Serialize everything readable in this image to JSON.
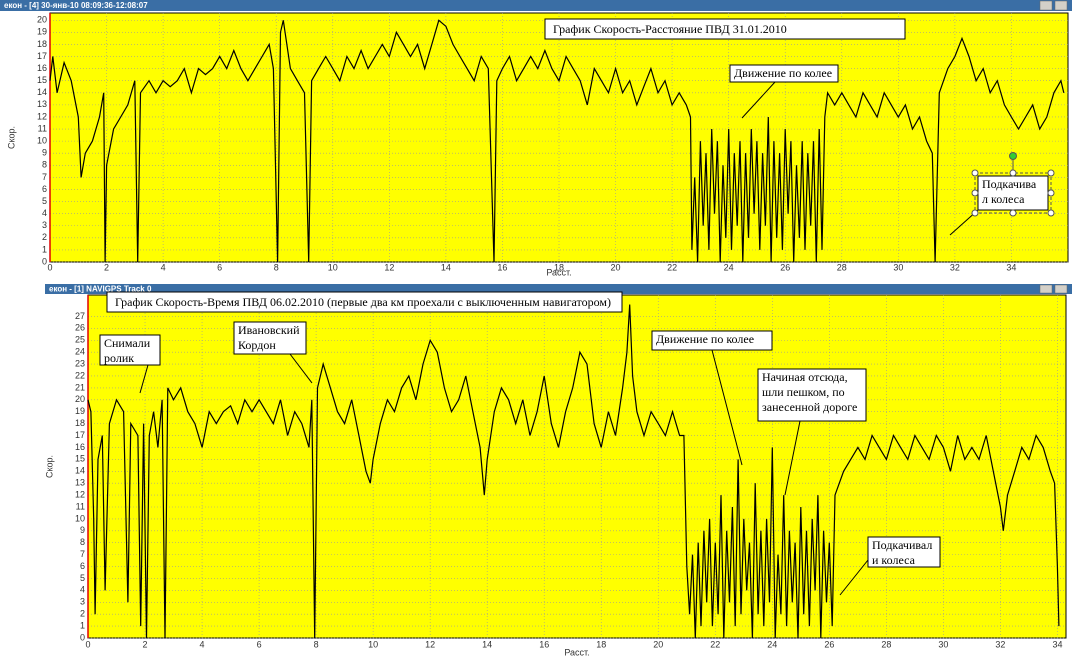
{
  "chart_data": [
    {
      "type": "line",
      "window_title": "екон - [4] 30-янв-10 08:09:36-12:08:07",
      "title": "График Скорость-Расстояние ПВД 31.01.2010",
      "x_label": "Расст.",
      "y_label": "Скор.",
      "color": "#000000",
      "background": "#ffff00",
      "grid": true,
      "xlim": [
        0,
        36
      ],
      "ylim": [
        0,
        20.6
      ],
      "xticks": [
        0,
        2,
        4,
        6,
        8,
        10,
        12,
        14,
        16,
        18,
        20,
        22,
        24,
        26,
        28,
        30,
        32,
        34
      ],
      "yticks": [
        0,
        1,
        2,
        3,
        4,
        5,
        6,
        7,
        8,
        9,
        10,
        11,
        12,
        13,
        14,
        15,
        16,
        17,
        18,
        19,
        20
      ],
      "annotations": [
        {
          "lines": [
            "Движение по колее"
          ]
        },
        {
          "lines": [
            "Подкачива",
            "л колеса"
          ]
        }
      ],
      "x": [
        0,
        0.1,
        0.25,
        0.5,
        0.75,
        1,
        1.1,
        1.25,
        1.5,
        1.75,
        1.9,
        1.95,
        2,
        2.25,
        2.5,
        2.75,
        3,
        3.1,
        3.2,
        3.5,
        3.75,
        4,
        4.25,
        4.5,
        4.75,
        5,
        5.25,
        5.5,
        5.75,
        6,
        6.25,
        6.5,
        6.75,
        7,
        7.25,
        7.5,
        7.75,
        7.9,
        8.05,
        8.15,
        8.25,
        8.5,
        8.75,
        9,
        9.15,
        9.25,
        9.5,
        9.75,
        10,
        10.25,
        10.5,
        10.75,
        11,
        11.25,
        11.5,
        11.75,
        12,
        12.25,
        12.5,
        12.75,
        13,
        13.25,
        13.5,
        13.75,
        14,
        14.25,
        14.5,
        14.75,
        15,
        15.25,
        15.5,
        15.7,
        15.8,
        16,
        16.25,
        16.5,
        16.75,
        17,
        17.25,
        17.5,
        17.75,
        18,
        18.25,
        18.5,
        18.75,
        19,
        19.25,
        19.5,
        19.75,
        20,
        20.25,
        20.5,
        20.75,
        21,
        21.25,
        21.5,
        21.75,
        22,
        22.25,
        22.5,
        22.65,
        22.7,
        22.8,
        22.9,
        23,
        23.1,
        23.2,
        23.3,
        23.4,
        23.5,
        23.6,
        23.7,
        23.8,
        23.9,
        24,
        24.1,
        24.2,
        24.3,
        24.4,
        24.5,
        24.6,
        24.7,
        24.8,
        24.9,
        25,
        25.1,
        25.2,
        25.3,
        25.4,
        25.5,
        25.6,
        25.7,
        25.8,
        25.9,
        26,
        26.1,
        26.2,
        26.3,
        26.4,
        26.5,
        26.6,
        26.7,
        26.8,
        26.9,
        27,
        27.1,
        27.2,
        27.3,
        27.4,
        27.5,
        27.75,
        28,
        28.25,
        28.5,
        28.75,
        29,
        29.25,
        29.5,
        29.75,
        30,
        30.25,
        30.5,
        30.75,
        31,
        31.2,
        31.3,
        31.45,
        31.75,
        32,
        32.25,
        32.5,
        32.75,
        33,
        33.25,
        33.5,
        33.75,
        34,
        34.25,
        34.5,
        34.75,
        35,
        35.25,
        35.5,
        35.75,
        35.85
      ],
      "values": [
        15,
        17,
        14,
        16.5,
        15,
        12,
        7,
        9,
        10,
        12,
        14,
        0,
        8,
        11,
        12,
        13,
        15,
        0,
        14,
        15,
        14,
        15,
        14.5,
        15,
        16,
        14,
        16,
        15.5,
        16,
        17,
        16,
        17.5,
        16,
        15,
        16,
        17,
        18,
        16,
        0,
        19,
        20,
        16,
        15,
        14,
        0,
        15,
        16,
        17,
        16,
        15,
        17,
        16,
        17.5,
        16,
        17,
        18,
        17,
        19,
        18,
        17,
        18,
        16,
        18,
        20,
        19.5,
        18,
        17,
        16,
        15,
        17,
        16,
        0,
        15,
        16,
        17,
        15,
        16,
        17,
        16,
        17.5,
        16,
        15,
        17,
        16,
        15,
        13,
        16,
        15,
        14,
        16,
        14,
        15,
        13,
        14.5,
        16,
        14,
        15,
        13,
        14,
        13,
        12,
        1,
        7,
        0,
        10,
        3,
        9,
        1,
        11,
        4,
        10,
        0,
        8,
        2,
        11,
        1,
        9,
        3,
        10,
        0,
        9,
        2,
        11,
        4,
        10,
        1,
        9,
        3,
        12,
        0,
        10,
        2,
        9,
        1,
        11,
        4,
        10,
        0,
        8,
        2,
        10,
        1,
        9,
        3,
        10,
        0,
        11,
        1,
        12,
        14,
        13,
        14,
        13,
        12,
        14,
        13,
        12,
        14,
        13,
        12,
        13,
        11,
        12,
        10,
        9,
        0,
        14,
        16,
        17,
        18.5,
        17,
        15,
        16,
        14,
        15,
        13,
        12,
        11,
        12,
        13,
        11,
        12,
        14,
        15,
        14
      ]
    },
    {
      "type": "line",
      "window_title": "екон - [1] NAVIGPS Track 0",
      "title": "График Скорость-Время ПВД 06.02.2010  (первые два км проехали с выключенным навигатором)",
      "x_label": "Расст.",
      "y_label": "Скор.",
      "color": "#000000",
      "background": "#ffff00",
      "grid": true,
      "xlim": [
        0,
        34.3
      ],
      "ylim": [
        0,
        28.8
      ],
      "xticks": [
        0,
        2,
        4,
        6,
        8,
        10,
        12,
        14,
        16,
        18,
        20,
        22,
        24,
        26,
        28,
        30,
        32,
        34
      ],
      "yticks": [
        0,
        1,
        2,
        3,
        4,
        5,
        6,
        7,
        8,
        9,
        10,
        11,
        12,
        13,
        14,
        15,
        16,
        17,
        18,
        19,
        20,
        21,
        22,
        23,
        24,
        25,
        26,
        27
      ],
      "annotations": [
        {
          "lines": [
            "Снимали",
            "ролик"
          ]
        },
        {
          "lines": [
            "Ивановский",
            "Кордон"
          ]
        },
        {
          "lines": [
            "Движение по колее"
          ]
        },
        {
          "lines": [
            "Начиная отсюда,",
            "шли пешком, по",
            "занесенной дороге"
          ]
        },
        {
          "lines": [
            "Подкачивал",
            "и колеса"
          ]
        }
      ],
      "x": [
        0,
        0.1,
        0.2,
        0.25,
        0.35,
        0.5,
        0.6,
        0.75,
        1,
        1.25,
        1.4,
        1.5,
        1.75,
        1.85,
        1.95,
        2.05,
        2.15,
        2.3,
        2.45,
        2.6,
        2.7,
        2.8,
        3,
        3.25,
        3.5,
        3.75,
        4,
        4.25,
        4.5,
        4.75,
        5,
        5.25,
        5.5,
        5.75,
        6,
        6.25,
        6.5,
        6.75,
        7,
        7.25,
        7.5,
        7.75,
        7.85,
        7.95,
        8.05,
        8.25,
        8.5,
        8.75,
        9,
        9.25,
        9.5,
        9.75,
        9.9,
        10,
        10.25,
        10.5,
        10.75,
        11,
        11.25,
        11.5,
        11.75,
        12,
        12.25,
        12.5,
        12.75,
        13,
        13.25,
        13.5,
        13.75,
        13.9,
        14,
        14.25,
        14.5,
        14.75,
        15,
        15.25,
        15.5,
        15.75,
        16,
        16.25,
        16.5,
        16.75,
        17,
        17.25,
        17.5,
        17.75,
        18,
        18.25,
        18.5,
        18.75,
        18.9,
        19,
        19.1,
        19.25,
        19.5,
        19.75,
        20,
        20.25,
        20.5,
        20.75,
        20.9,
        21,
        21.1,
        21.2,
        21.3,
        21.4,
        21.5,
        21.6,
        21.7,
        21.8,
        21.9,
        22,
        22.1,
        22.2,
        22.3,
        22.4,
        22.5,
        22.6,
        22.7,
        22.8,
        22.9,
        23,
        23.1,
        23.2,
        23.3,
        23.4,
        23.5,
        23.6,
        23.7,
        23.8,
        23.9,
        24,
        24.1,
        24.2,
        24.3,
        24.4,
        24.5,
        24.6,
        24.7,
        24.8,
        24.9,
        25,
        25.1,
        25.2,
        25.3,
        25.4,
        25.5,
        25.6,
        25.7,
        25.8,
        25.9,
        26,
        26.1,
        26.2,
        26.5,
        26.75,
        27,
        27.25,
        27.5,
        27.75,
        28,
        28.25,
        28.5,
        28.75,
        29,
        29.25,
        29.5,
        29.75,
        30,
        30.25,
        30.5,
        30.75,
        31,
        31.25,
        31.5,
        31.75,
        32,
        32.1,
        32.25,
        32.5,
        32.75,
        33,
        33.25,
        33.5,
        33.75,
        33.9,
        34,
        34.05
      ],
      "values": [
        20,
        19,
        10,
        2,
        15,
        17,
        4,
        18,
        20,
        19,
        3,
        18,
        17,
        1,
        18,
        0,
        17,
        19,
        16,
        20,
        0,
        21,
        20,
        21,
        19,
        18,
        16,
        19,
        18,
        19,
        19.5,
        18,
        20,
        19,
        20,
        19,
        18,
        20,
        17,
        19,
        18,
        16,
        20,
        0,
        21,
        23,
        21,
        19,
        18,
        20,
        17,
        14,
        13,
        15,
        18,
        20,
        19,
        21,
        22,
        20,
        23,
        25,
        24,
        21,
        19,
        20,
        22,
        19,
        16,
        12,
        15,
        19,
        21,
        20,
        18,
        20,
        17,
        19,
        22,
        18,
        16,
        19,
        21,
        24,
        23,
        18,
        16,
        19,
        17,
        21,
        24,
        28,
        22,
        19,
        17,
        19,
        18,
        17,
        19,
        17,
        17,
        6,
        2,
        7,
        0,
        8,
        1,
        9,
        3,
        10,
        1,
        8,
        2,
        12,
        0,
        9,
        3,
        11,
        1,
        15,
        2,
        10,
        4,
        8,
        0,
        13,
        2,
        9,
        1,
        10,
        3,
        16,
        0,
        7,
        2,
        12,
        1,
        9,
        3,
        8,
        0,
        11,
        2,
        9,
        1,
        10,
        4,
        12,
        0,
        9,
        3,
        8,
        1,
        12,
        14,
        15,
        16,
        15,
        17,
        16,
        15,
        17,
        16,
        15,
        17,
        16,
        15,
        17,
        16,
        14,
        17,
        15,
        16,
        15,
        17,
        14,
        11,
        9,
        12,
        14,
        16,
        15,
        17,
        16,
        14,
        13,
        6,
        1
      ]
    }
  ]
}
